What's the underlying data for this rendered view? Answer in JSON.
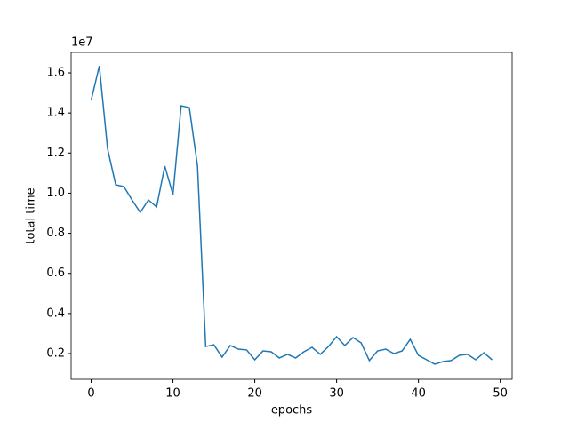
{
  "chart_data": {
    "type": "line",
    "x_label": "epochs",
    "y_label": "total time",
    "y_offset_label": "1e7",
    "x": [
      0,
      1,
      2,
      3,
      4,
      5,
      6,
      7,
      8,
      9,
      10,
      11,
      12,
      13,
      14,
      15,
      16,
      17,
      18,
      19,
      20,
      21,
      22,
      23,
      24,
      25,
      26,
      27,
      28,
      29,
      30,
      31,
      32,
      33,
      34,
      35,
      36,
      37,
      38,
      39,
      40,
      41,
      42,
      43,
      44,
      45,
      46,
      47,
      48,
      49
    ],
    "series": [
      {
        "color": "#1f77b4",
        "values": [
          1.463,
          1.635,
          1.223,
          1.042,
          1.033,
          0.966,
          0.904,
          0.966,
          0.931,
          1.135,
          0.993,
          1.436,
          1.427,
          1.135,
          0.235,
          0.244,
          0.182,
          0.24,
          0.222,
          0.218,
          0.169,
          0.213,
          0.209,
          0.178,
          0.196,
          0.178,
          0.209,
          0.231,
          0.196,
          0.235,
          0.284,
          0.24,
          0.28,
          0.253,
          0.165,
          0.213,
          0.222,
          0.2,
          0.213,
          0.271,
          0.191,
          0.169,
          0.147,
          0.16,
          0.165,
          0.191,
          0.196,
          0.169,
          0.204,
          0.169
        ]
      }
    ],
    "xlim": [
      -2.45,
      51.45
    ],
    "xticks": [
      0,
      10,
      20,
      30,
      40,
      50
    ],
    "ylim": [
      0.0715,
      1.702
    ],
    "yticks": [
      0.2,
      0.4,
      0.6,
      0.8,
      {
        "value": 1,
        "label": "1.0"
      },
      1.2,
      1.4,
      1.6
    ]
  }
}
